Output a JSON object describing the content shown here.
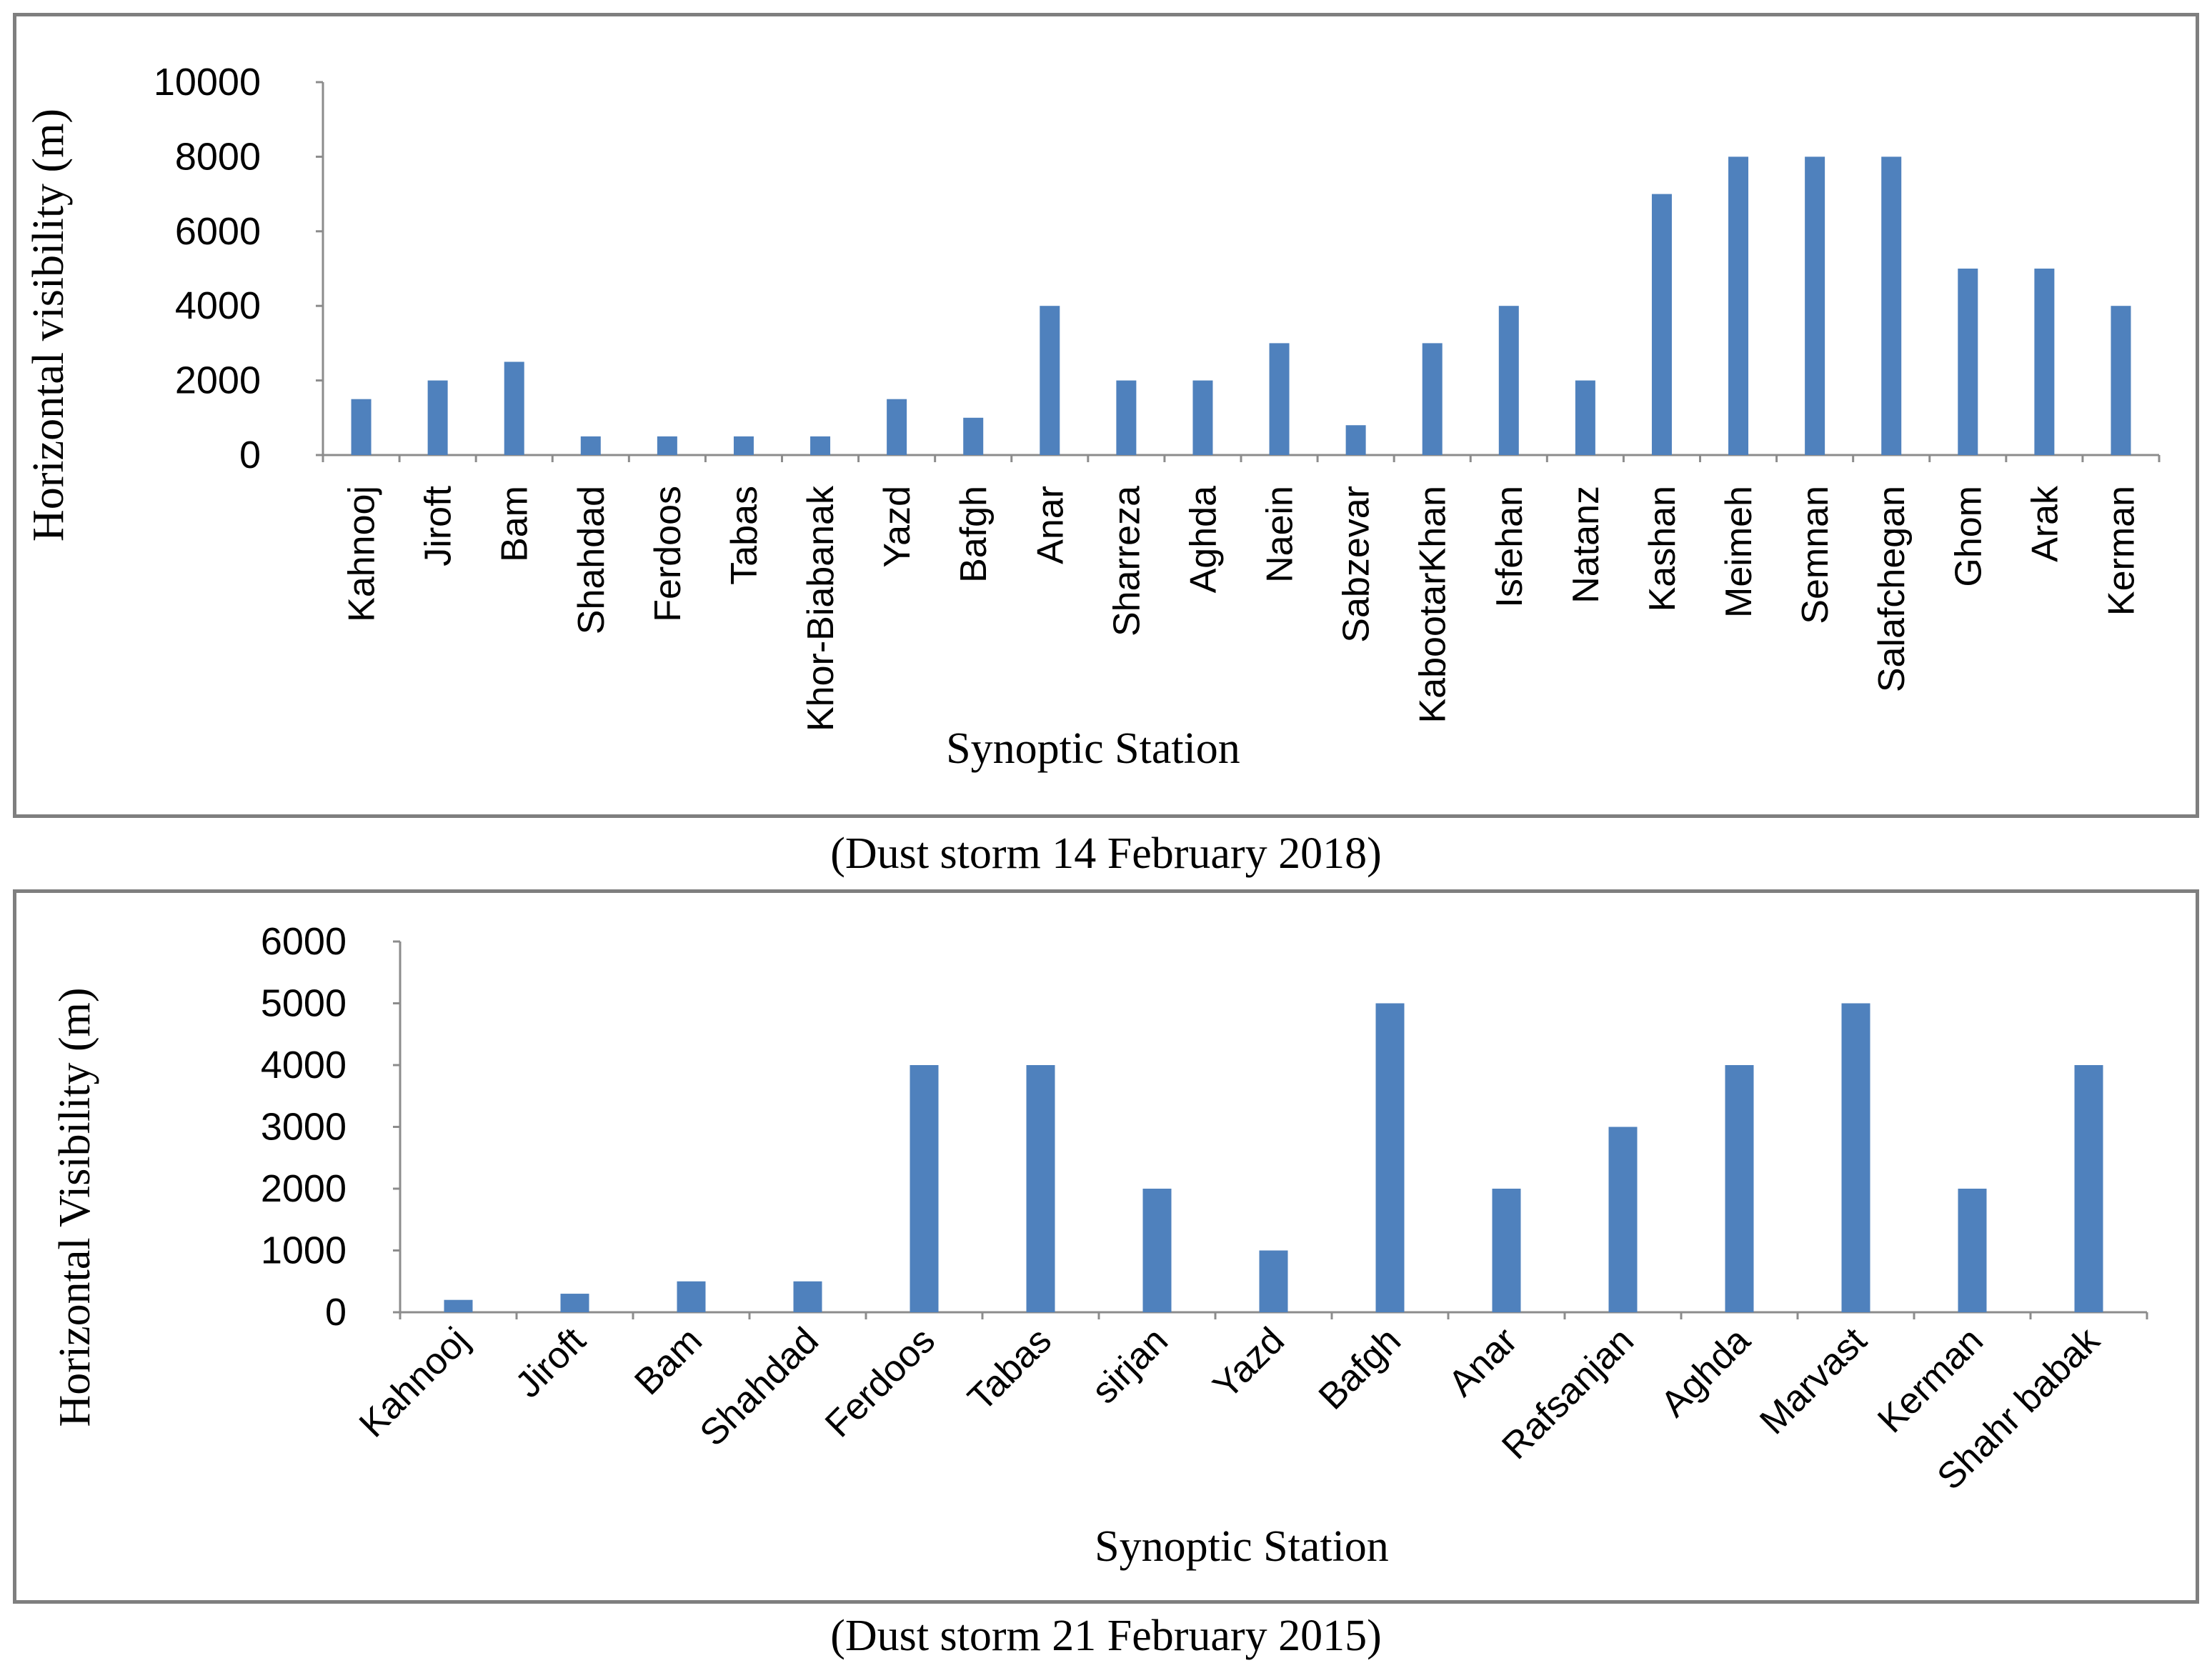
{
  "chart_data": [
    {
      "type": "bar",
      "title": "",
      "caption": "(Dust storm 14 February 2018)",
      "xlabel": "Synoptic Station",
      "ylabel": "Horizontal visibility (m)",
      "ylim": [
        0,
        10000
      ],
      "yticks": [
        0,
        2000,
        4000,
        6000,
        8000,
        10000
      ],
      "categories": [
        "Kahnooj",
        "Jiroft",
        "Bam",
        "Shahdad",
        "Ferdoos",
        "Tabas",
        "Khor-Biabanak",
        "Yazd",
        "Bafgh",
        "Anar",
        "Sharreza",
        "Aghda",
        "Naein",
        "Sabzevar",
        "KabootarKhan",
        "Isfehan",
        "Natanz",
        "Kashan",
        "Meimeh",
        "Semnan",
        "Salafchegan",
        "Ghom",
        "Arak",
        "Kerman"
      ],
      "values": [
        1500,
        2000,
        2500,
        500,
        500,
        500,
        500,
        1500,
        1000,
        4000,
        2000,
        2000,
        3000,
        800,
        3000,
        4000,
        2000,
        7000,
        8000,
        8000,
        8000,
        5000,
        5000,
        4000
      ],
      "bar_color": "#4f81bd",
      "label_rotation": "vertical",
      "grid": false
    },
    {
      "type": "bar",
      "title": "",
      "caption": "(Dust storm 21 February 2015)",
      "xlabel": "Synoptic Station",
      "ylabel": "Horizontal Visibility  (m)",
      "ylim": [
        0,
        6000
      ],
      "yticks": [
        0,
        1000,
        2000,
        3000,
        4000,
        5000,
        6000
      ],
      "categories": [
        "Kahnooj",
        "Jiroft",
        "Bam",
        "Shahdad",
        "Ferdoos",
        "Tabas",
        "sirjan",
        "Yazd",
        "Bafgh",
        "Anar",
        "Rafsanjan",
        "Aghda",
        "Marvast",
        "Kerman",
        "Shahr babak"
      ],
      "values": [
        200,
        300,
        500,
        500,
        4000,
        4000,
        2000,
        1000,
        5000,
        2000,
        3000,
        4000,
        5000,
        2000,
        4000
      ],
      "bar_color": "#4f81bd",
      "label_rotation": "diagonal",
      "grid": false
    }
  ]
}
